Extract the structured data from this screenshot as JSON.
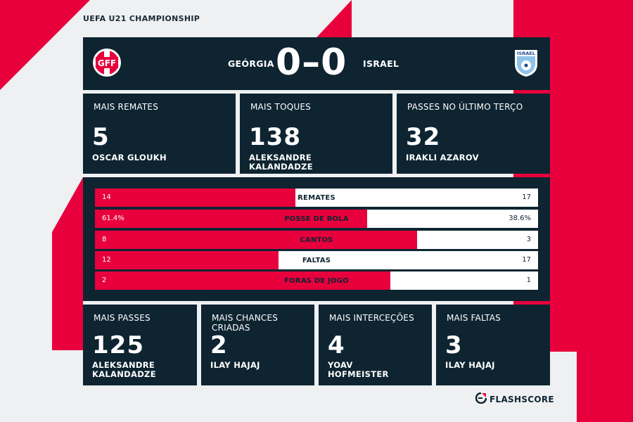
{
  "competition": "UEFA U21 CHAMPIONSHIP",
  "colors": {
    "accent": "#e8003d",
    "panel": "#0e2431",
    "background": "#eef0f2"
  },
  "match": {
    "home_team": "GEÓRGIA",
    "away_team": "ISRAEL",
    "score": "0–0",
    "home_crest_text": "GFF",
    "away_crest_text": "ISRAEL"
  },
  "top_cards": [
    {
      "label": "MAIS REMATES",
      "value": "5",
      "player": "OSCAR GLOUKH"
    },
    {
      "label": "MAIS TOQUES",
      "value": "138",
      "player": "ALEKSANDRE KALANDADZE"
    },
    {
      "label": "PASSES NO ÚLTIMO TERÇO",
      "value": "32",
      "player": "IRAKLI AZAROV"
    }
  ],
  "bars": [
    {
      "label": "REMATES",
      "home": "14",
      "away": "17",
      "home_share": 0.452
    },
    {
      "label": "POSSE DE BOLA",
      "home": "61.4%",
      "away": "38.6%",
      "home_share": 0.614
    },
    {
      "label": "CANTOS",
      "home": "8",
      "away": "3",
      "home_share": 0.727
    },
    {
      "label": "FALTAS",
      "home": "12",
      "away": "17",
      "home_share": 0.414
    },
    {
      "label": "FORAS DE JOGO",
      "home": "2",
      "away": "1",
      "home_share": 0.667
    }
  ],
  "bottom_cards": [
    {
      "label": "MAIS PASSES",
      "value": "125",
      "player": "ALEKSANDRE KALANDADZE"
    },
    {
      "label": "MAIS CHANCES CRIADAS",
      "value": "2",
      "player": "ILAY HAJAJ"
    },
    {
      "label": "MAIS INTERCEÇÕES",
      "value": "4",
      "player": "YOAV HOFMEISTER"
    },
    {
      "label": "MAIS FALTAS",
      "value": "3",
      "player": "ILAY HAJAJ"
    }
  ],
  "brand": {
    "name": "FLASHSCORE",
    "icon": "flashscore-logo-icon"
  }
}
